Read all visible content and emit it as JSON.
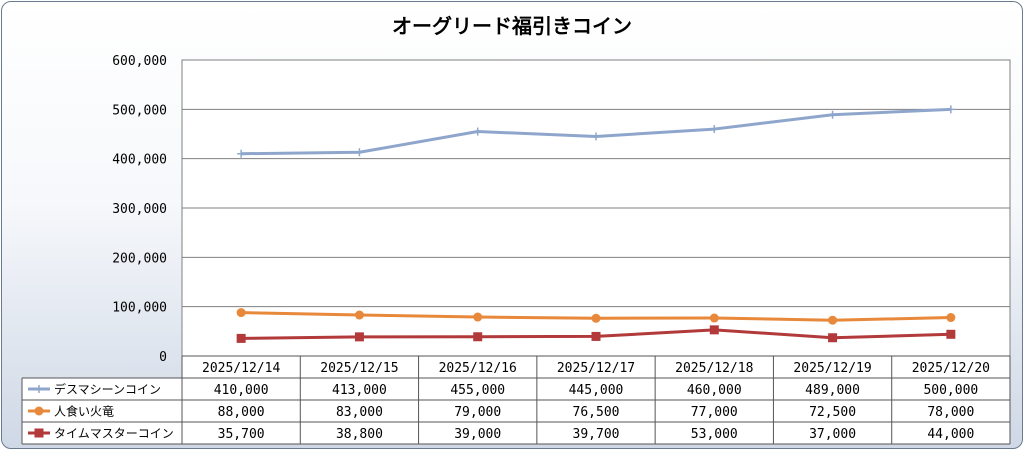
{
  "chart_data": {
    "type": "line",
    "title": "オーグリード福引きコイン",
    "xlabel": "",
    "ylabel": "",
    "categories": [
      "2025/12/14",
      "2025/12/15",
      "2025/12/16",
      "2025/12/17",
      "2025/12/18",
      "2025/12/19",
      "2025/12/20"
    ],
    "ylim": [
      0,
      600000
    ],
    "yticks": [
      0,
      100000,
      200000,
      300000,
      400000,
      500000,
      600000
    ],
    "ytick_labels": [
      "0",
      "100,000",
      "200,000",
      "300,000",
      "400,000",
      "500,000",
      "600,000"
    ],
    "grid": true,
    "legend": "data-table-bottom",
    "series": [
      {
        "name": "デスマシーンコイン",
        "values": [
          410000,
          413000,
          455000,
          445000,
          460000,
          489000,
          500000
        ],
        "labels": [
          "410,000",
          "413,000",
          "455,000",
          "445,000",
          "460,000",
          "489,000",
          "500,000"
        ],
        "color": "#8fa6cc",
        "marker": "plus"
      },
      {
        "name": "人食い火竜",
        "values": [
          88000,
          83000,
          79000,
          76500,
          77000,
          72500,
          78000
        ],
        "labels": [
          "88,000",
          "83,000",
          "79,000",
          "76,500",
          "77,000",
          "72,500",
          "78,000"
        ],
        "color": "#e8883a",
        "marker": "circle"
      },
      {
        "name": "タイムマスターコイン",
        "values": [
          35700,
          38800,
          39000,
          39700,
          53000,
          37000,
          44000
        ],
        "labels": [
          "35,700",
          "38,800",
          "39,000",
          "39,700",
          "53,000",
          "37,000",
          "44,000"
        ],
        "color": "#b23a3a",
        "marker": "square"
      }
    ]
  }
}
